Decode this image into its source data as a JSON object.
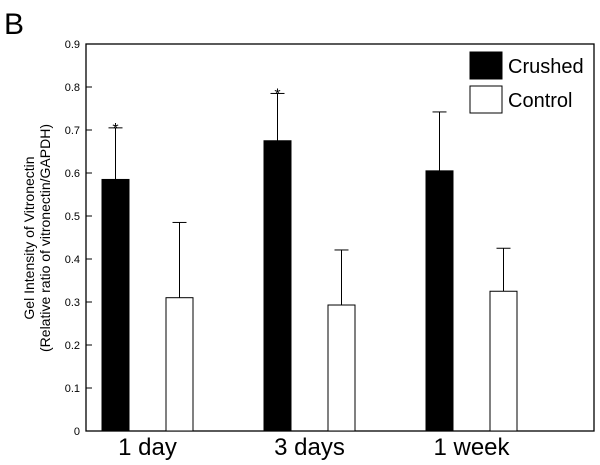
{
  "panel_label": "B",
  "chart_data": {
    "type": "bar",
    "categories": [
      "1 day",
      "3 days",
      "1 week"
    ],
    "series": [
      {
        "name": "Crushed",
        "color": "#000000",
        "values": [
          0.585,
          0.675,
          0.605
        ],
        "errors": [
          0.12,
          0.11,
          0.137
        ]
      },
      {
        "name": "Control",
        "color": "#ffffff",
        "values": [
          0.31,
          0.293,
          0.325
        ],
        "errors": [
          0.175,
          0.128,
          0.1
        ]
      }
    ],
    "significance": [
      {
        "category": 0,
        "series": 0,
        "label": "*"
      },
      {
        "category": 1,
        "series": 0,
        "label": "*"
      }
    ],
    "ylabel_line1": "Gel Intensity of Vitronectin",
    "ylabel_line2": "(Relative ratio of vitronectin/GAPDH)",
    "ylim": [
      0,
      0.9
    ],
    "yticks": [
      "0",
      "0.1",
      "0.2",
      "0.3",
      "0.4",
      "0.5",
      "0.6",
      "0.7",
      "0.8",
      "0.9"
    ],
    "legend_position": "top-right",
    "grid": false
  }
}
